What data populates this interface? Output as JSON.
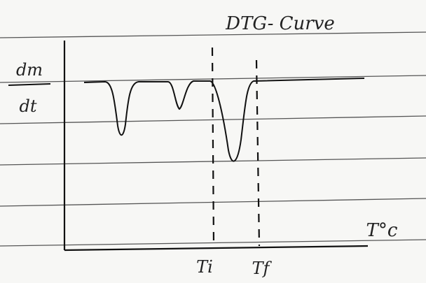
{
  "title": "DTG- Curve",
  "y_label": {
    "numerator": "dm",
    "denominator": "dt"
  },
  "x_label": "T°c",
  "markers": [
    "Ti",
    "Tf"
  ]
}
